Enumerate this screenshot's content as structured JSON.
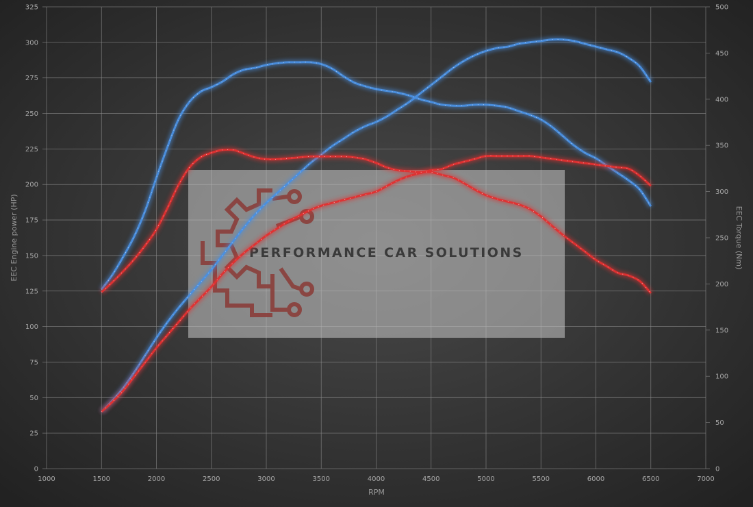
{
  "chart_data": {
    "type": "line",
    "xlabel": "RPM",
    "ylabel_left": "EEC Engine power (HP)",
    "ylabel_right": "EEC Torque (Nm)",
    "xlim": [
      1000,
      7000
    ],
    "xticks": [
      1000,
      1500,
      2000,
      2500,
      3000,
      3500,
      4000,
      4500,
      5000,
      5500,
      6000,
      6500,
      7000
    ],
    "ylim_left": [
      0,
      325
    ],
    "yticks_left": [
      0,
      25,
      50,
      75,
      100,
      125,
      150,
      175,
      200,
      225,
      250,
      275,
      300,
      325
    ],
    "ylim_right": [
      0,
      500
    ],
    "yticks_right": [
      0,
      50,
      100,
      150,
      200,
      250,
      300,
      350,
      400,
      450,
      500
    ],
    "grid": true,
    "colors": {
      "tuned": "#4a8fe0",
      "stock": "#e03030",
      "background": "#2a2a2a"
    },
    "series": [
      {
        "axis": "left",
        "color": "tuned",
        "x": [
          1500,
          1600,
          1700,
          1800,
          1900,
          2000,
          2100,
          2200,
          2300,
          2400,
          2500,
          2600,
          2700,
          2800,
          2900,
          3000,
          3100,
          3200,
          3300,
          3400,
          3500,
          3600,
          3700,
          3800,
          3900,
          4000,
          4100,
          4200,
          4300,
          4400,
          4500,
          4600,
          4700,
          4800,
          4900,
          5000,
          5100,
          5200,
          5300,
          5400,
          5500,
          5600,
          5700,
          5800,
          5900,
          6000,
          6100,
          6200,
          6300,
          6400,
          6500
        ],
        "y": [
          40,
          48,
          57,
          68,
          80,
          92,
          103,
          113,
          122,
          131,
          140,
          150,
          160,
          170,
          179,
          187,
          194,
          201,
          208,
          215,
          221,
          227,
          232,
          237,
          241,
          244,
          248,
          253,
          258,
          264,
          270,
          276,
          282,
          287,
          291,
          294,
          296,
          297,
          299,
          300,
          301,
          302,
          302,
          301,
          299,
          297,
          295,
          293,
          289,
          283,
          272
        ]
      },
      {
        "axis": "right",
        "color": "tuned",
        "x": [
          1500,
          1600,
          1700,
          1800,
          1900,
          2000,
          2100,
          2200,
          2300,
          2400,
          2500,
          2600,
          2700,
          2800,
          2900,
          3000,
          3100,
          3200,
          3300,
          3400,
          3500,
          3600,
          3700,
          3800,
          3900,
          4000,
          4100,
          4200,
          4300,
          4400,
          4500,
          4600,
          4700,
          4800,
          4900,
          5000,
          5100,
          5200,
          5300,
          5400,
          5500,
          5600,
          5700,
          5800,
          5900,
          6000,
          6100,
          6200,
          6300,
          6400,
          6500
        ],
        "y": [
          194,
          210,
          230,
          252,
          280,
          315,
          348,
          378,
          397,
          408,
          413,
          419,
          427,
          432,
          434,
          437,
          439,
          440,
          440,
          440,
          438,
          433,
          425,
          418,
          414,
          411,
          409,
          407,
          404,
          400,
          397,
          394,
          393,
          393,
          394,
          394,
          393,
          391,
          387,
          383,
          378,
          370,
          360,
          350,
          342,
          336,
          328,
          320,
          312,
          302,
          284
        ]
      },
      {
        "axis": "left",
        "color": "stock",
        "x": [
          1500,
          1600,
          1700,
          1800,
          1900,
          2000,
          2100,
          2200,
          2300,
          2400,
          2500,
          2600,
          2700,
          2800,
          2900,
          3000,
          3100,
          3200,
          3300,
          3400,
          3500,
          3600,
          3700,
          3800,
          3900,
          4000,
          4100,
          4200,
          4300,
          4400,
          4500,
          4600,
          4700,
          4800,
          4900,
          5000,
          5100,
          5200,
          5300,
          5400,
          5500,
          5600,
          5700,
          5800,
          5900,
          6000,
          6100,
          6200,
          6300,
          6400,
          6500
        ],
        "y": [
          40,
          47,
          55,
          65,
          75,
          85,
          94,
          103,
          112,
          120,
          128,
          137,
          145,
          152,
          158,
          164,
          169,
          174,
          178,
          182,
          185,
          187,
          189,
          191,
          193,
          195,
          199,
          203,
          206,
          208,
          210,
          211,
          214,
          216,
          218,
          220,
          220,
          220,
          220,
          220,
          219,
          218,
          217,
          216,
          215,
          214,
          213,
          212,
          211,
          206,
          199
        ]
      },
      {
        "axis": "right",
        "color": "stock",
        "x": [
          1500,
          1600,
          1700,
          1800,
          1900,
          2000,
          2100,
          2200,
          2300,
          2400,
          2500,
          2600,
          2700,
          2800,
          2900,
          3000,
          3100,
          3200,
          3300,
          3400,
          3500,
          3600,
          3700,
          3800,
          3900,
          4000,
          4100,
          4200,
          4300,
          4400,
          4500,
          4600,
          4700,
          4800,
          4900,
          5000,
          5100,
          5200,
          5300,
          5400,
          5500,
          5600,
          5700,
          5800,
          5900,
          6000,
          6100,
          6200,
          6300,
          6400,
          6500
        ],
        "y": [
          191,
          202,
          214,
          227,
          242,
          259,
          282,
          307,
          326,
          337,
          342,
          345,
          345,
          341,
          337,
          335,
          335,
          336,
          337,
          338,
          338,
          338,
          338,
          337,
          335,
          331,
          326,
          323,
          322,
          321,
          321,
          318,
          315,
          309,
          302,
          296,
          292,
          289,
          286,
          281,
          273,
          263,
          253,
          244,
          235,
          226,
          219,
          212,
          209,
          203,
          190
        ]
      }
    ]
  },
  "watermark": {
    "text": "PERFORMANCE CAR SOLUTIONS",
    "gear_color": "#8a3a36"
  }
}
